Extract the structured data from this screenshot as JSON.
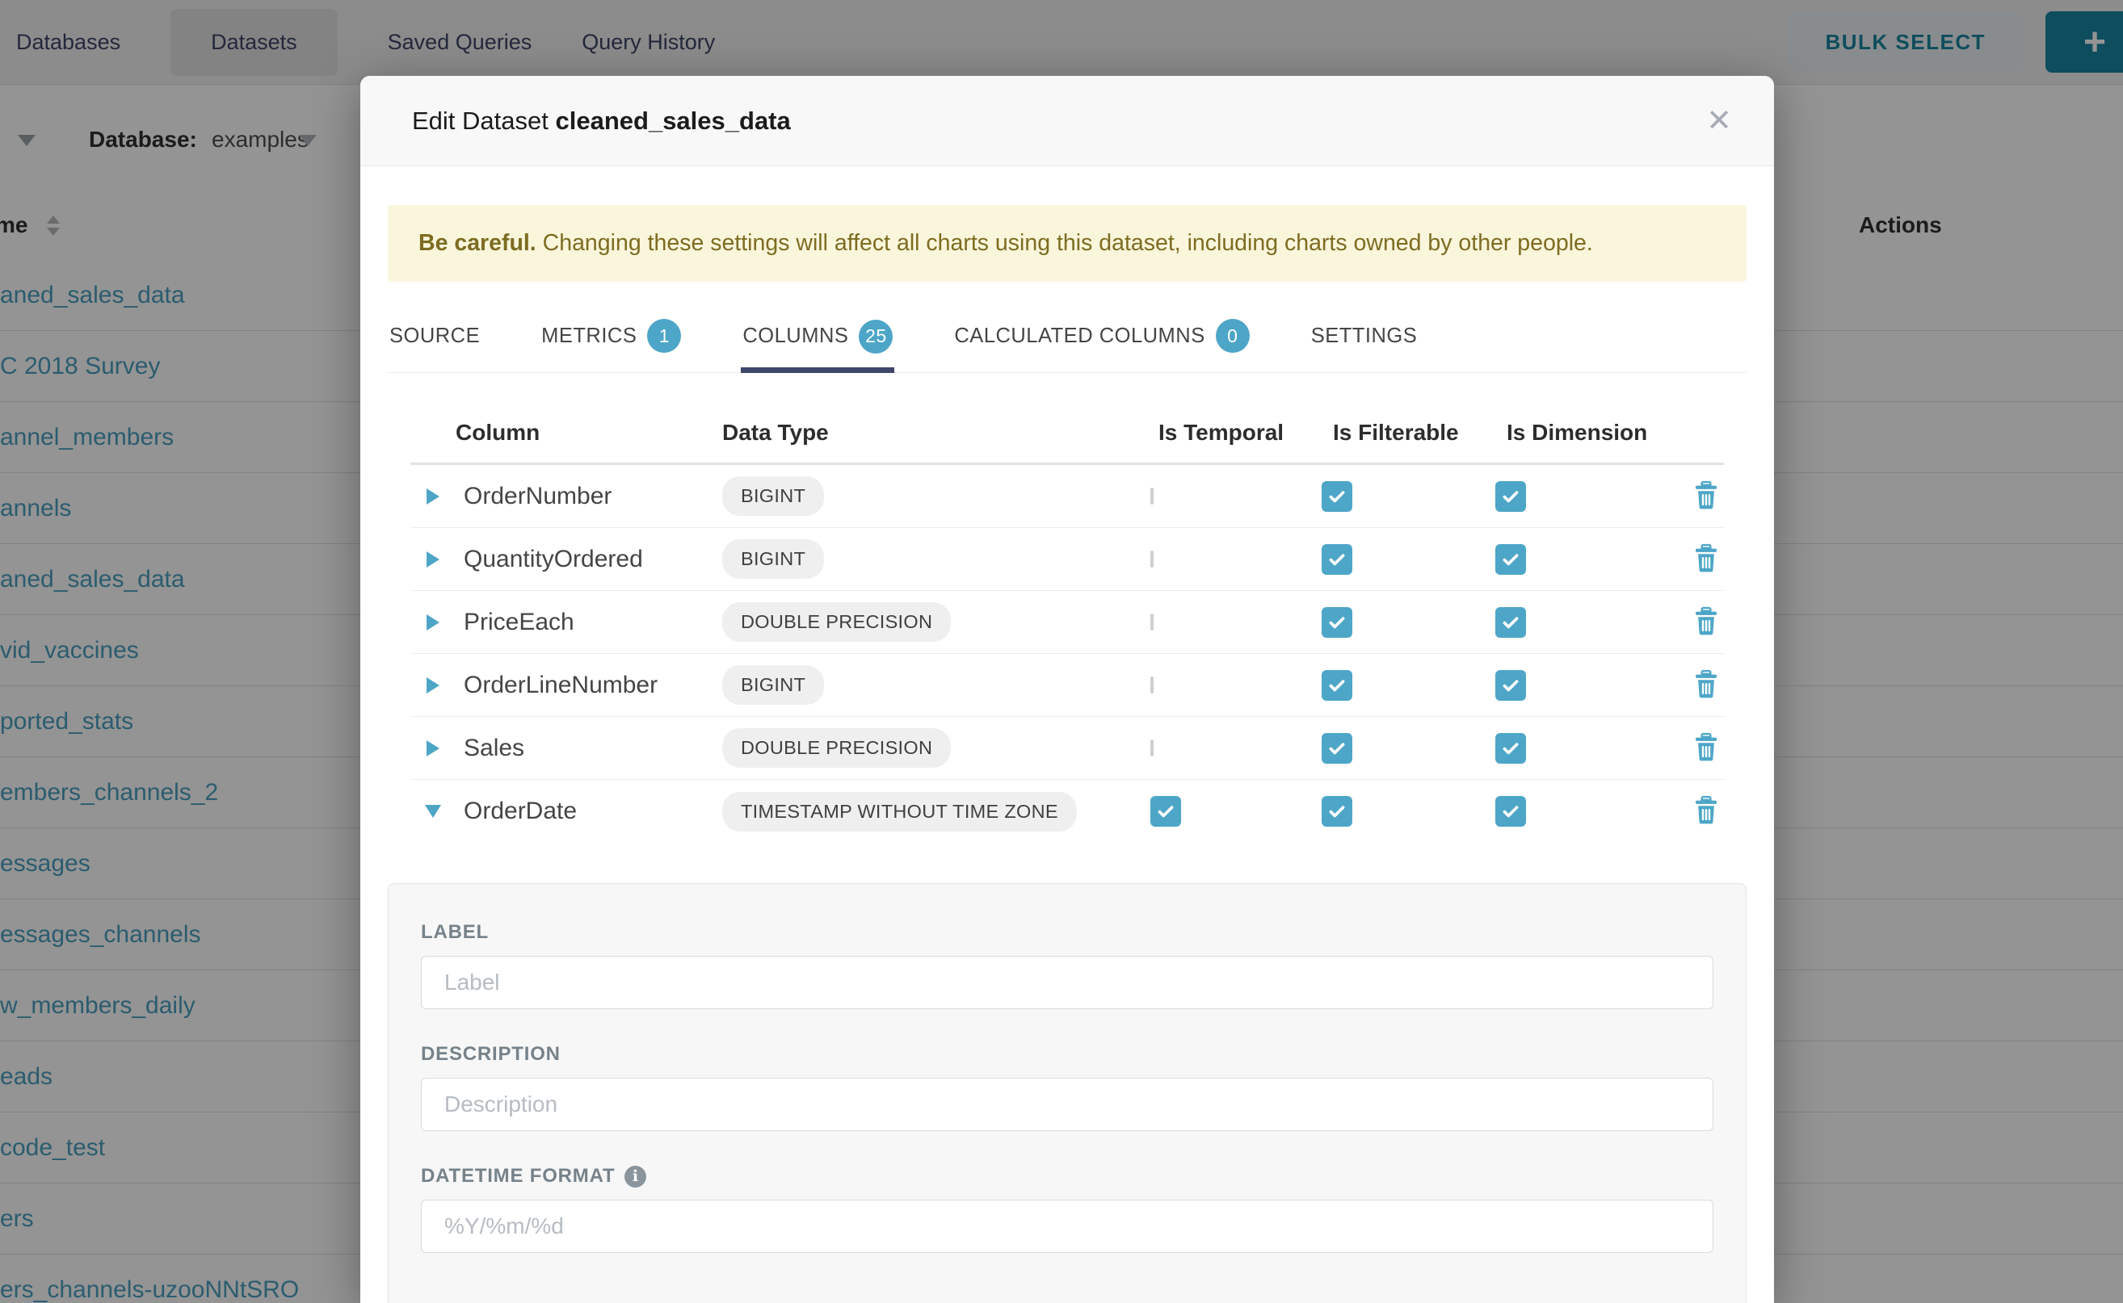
{
  "nav": {
    "items": [
      {
        "label": "Databases",
        "active": false
      },
      {
        "label": "Datasets",
        "active": true
      },
      {
        "label": "Saved Queries",
        "active": false
      },
      {
        "label": "Query History",
        "active": false
      }
    ],
    "bulk_select_label": "BULK SELECT",
    "add_button_label": "+"
  },
  "toolbar": {
    "database_label": "Database:",
    "database_value": "examples"
  },
  "background_table": {
    "name_header": "me",
    "actions_header": "Actions",
    "rows": [
      "aned_sales_data",
      "C 2018 Survey",
      "annel_members",
      "annels",
      "aned_sales_data",
      "vid_vaccines",
      "ported_stats",
      "embers_channels_2",
      "essages",
      "essages_channels",
      "w_members_daily",
      "eads",
      "code_test",
      "ers",
      "ers_channels-uzooNNtSRO"
    ]
  },
  "modal": {
    "title_prefix": "Edit Dataset",
    "title_dataset": "cleaned_sales_data",
    "warning": {
      "bold": "Be careful.",
      "text": " Changing these settings will affect all charts using this dataset, including charts owned by other people."
    },
    "tabs": [
      {
        "label": "SOURCE",
        "badge": null,
        "active": false
      },
      {
        "label": "METRICS",
        "badge": "1",
        "active": false
      },
      {
        "label": "COLUMNS",
        "badge": "25",
        "active": true
      },
      {
        "label": "CALCULATED COLUMNS",
        "badge": "0",
        "active": false
      },
      {
        "label": "SETTINGS",
        "badge": null,
        "active": false
      }
    ],
    "columns_table": {
      "headers": {
        "column": "Column",
        "data_type": "Data Type",
        "is_temporal": "Is Temporal",
        "is_filterable": "Is Filterable",
        "is_dimension": "Is Dimension"
      },
      "rows": [
        {
          "name": "OrderNumber",
          "type": "BIGINT",
          "temporal": false,
          "filterable": true,
          "dimension": true,
          "expanded": false
        },
        {
          "name": "QuantityOrdered",
          "type": "BIGINT",
          "temporal": false,
          "filterable": true,
          "dimension": true,
          "expanded": false
        },
        {
          "name": "PriceEach",
          "type": "DOUBLE PRECISION",
          "temporal": false,
          "filterable": true,
          "dimension": true,
          "expanded": false
        },
        {
          "name": "OrderLineNumber",
          "type": "BIGINT",
          "temporal": false,
          "filterable": true,
          "dimension": true,
          "expanded": false
        },
        {
          "name": "Sales",
          "type": "DOUBLE PRECISION",
          "temporal": false,
          "filterable": true,
          "dimension": true,
          "expanded": false
        },
        {
          "name": "OrderDate",
          "type": "TIMESTAMP WITHOUT TIME ZONE",
          "temporal": true,
          "filterable": true,
          "dimension": true,
          "expanded": true
        }
      ]
    },
    "expanded_editor": {
      "label_field": {
        "label": "LABEL",
        "placeholder": "Label",
        "value": ""
      },
      "description_field": {
        "label": "DESCRIPTION",
        "placeholder": "Description",
        "value": ""
      },
      "datetime_field": {
        "label": "DATETIME FORMAT",
        "placeholder": "%Y/%m/%d",
        "value": ""
      }
    }
  },
  "icons": {
    "close": "✕",
    "info": "i"
  },
  "colors": {
    "accent_blue": "#4da6c7",
    "tab_underline": "#3e4768",
    "link_blue": "#4b9fc0",
    "warning_bg": "#faf6dc",
    "warning_text": "#7d6c21",
    "teal_dark": "#1985a0"
  }
}
